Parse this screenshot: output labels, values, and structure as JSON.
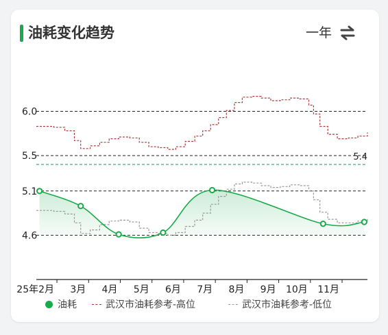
{
  "header": {
    "title": "油耗变化趋势",
    "period": "一年",
    "switch_icon": "swap-arrows-icon"
  },
  "colors": {
    "fuel": "#1aaa4b",
    "high": "#b33a3a",
    "low": "#9a9a9a",
    "reference": "#3a9a6a"
  },
  "chart_data": {
    "type": "line",
    "x_labels": [
      "25年2月",
      "3月",
      "4月",
      "5月",
      "6月",
      "7月",
      "8月",
      "9月",
      "10月",
      "11月"
    ],
    "x_label_months": [
      2,
      3,
      4,
      5,
      6,
      7,
      8,
      9,
      10,
      11
    ],
    "x_range_months": [
      1.35,
      11.8
    ],
    "y_ticks": [
      4.6,
      5.1,
      5.5,
      6.0
    ],
    "ylim": [
      4.1,
      6.6
    ],
    "grid": "dashed horizontal at tick values",
    "reference_line": {
      "value": 5.4,
      "label": "5.4"
    },
    "series": [
      {
        "name": "油耗",
        "style": "smooth-area",
        "points": [
          {
            "month": 1.45,
            "value": 5.1
          },
          {
            "month": 2.75,
            "value": 4.93
          },
          {
            "month": 3.95,
            "value": 4.61
          },
          {
            "month": 5.35,
            "value": 4.63
          },
          {
            "month": 6.9,
            "value": 5.11
          },
          {
            "month": 10.4,
            "value": 4.73
          },
          {
            "month": 11.7,
            "value": 4.75
          }
        ]
      },
      {
        "name": "武汉市油耗参考-高位",
        "style": "dashed-step",
        "points": [
          {
            "month": 1.35,
            "value": 5.83
          },
          {
            "month": 1.9,
            "value": 5.82
          },
          {
            "month": 2.25,
            "value": 5.78
          },
          {
            "month": 2.55,
            "value": 5.67
          },
          {
            "month": 2.75,
            "value": 5.58
          },
          {
            "month": 3.05,
            "value": 5.61
          },
          {
            "month": 3.35,
            "value": 5.65
          },
          {
            "month": 3.65,
            "value": 5.69
          },
          {
            "month": 3.95,
            "value": 5.71
          },
          {
            "month": 4.3,
            "value": 5.7
          },
          {
            "month": 4.6,
            "value": 5.65
          },
          {
            "month": 4.9,
            "value": 5.6
          },
          {
            "month": 5.2,
            "value": 5.59
          },
          {
            "month": 5.5,
            "value": 5.57
          },
          {
            "month": 5.75,
            "value": 5.6
          },
          {
            "month": 6.05,
            "value": 5.66
          },
          {
            "month": 6.35,
            "value": 5.72
          },
          {
            "month": 6.6,
            "value": 5.78
          },
          {
            "month": 6.85,
            "value": 5.85
          },
          {
            "month": 7.1,
            "value": 5.93
          },
          {
            "month": 7.35,
            "value": 6.01
          },
          {
            "month": 7.6,
            "value": 6.1
          },
          {
            "month": 7.85,
            "value": 6.16
          },
          {
            "month": 8.15,
            "value": 6.17
          },
          {
            "month": 8.45,
            "value": 6.15
          },
          {
            "month": 8.75,
            "value": 6.12
          },
          {
            "month": 9.05,
            "value": 6.13
          },
          {
            "month": 9.35,
            "value": 6.15
          },
          {
            "month": 9.65,
            "value": 6.14
          },
          {
            "month": 9.95,
            "value": 6.07
          },
          {
            "month": 10.1,
            "value": 5.97
          },
          {
            "month": 10.3,
            "value": 5.83
          },
          {
            "month": 10.55,
            "value": 5.74
          },
          {
            "month": 10.85,
            "value": 5.69
          },
          {
            "month": 11.2,
            "value": 5.7
          },
          {
            "month": 11.5,
            "value": 5.72
          },
          {
            "month": 11.8,
            "value": 5.76
          }
        ]
      },
      {
        "name": "武汉市油耗参考-低位",
        "style": "dashed-step",
        "points": [
          {
            "month": 1.35,
            "value": 4.88
          },
          {
            "month": 1.9,
            "value": 4.87
          },
          {
            "month": 2.25,
            "value": 4.84
          },
          {
            "month": 2.55,
            "value": 4.74
          },
          {
            "month": 2.75,
            "value": 4.62
          },
          {
            "month": 3.05,
            "value": 4.66
          },
          {
            "month": 3.35,
            "value": 4.72
          },
          {
            "month": 3.65,
            "value": 4.76
          },
          {
            "month": 3.95,
            "value": 4.77
          },
          {
            "month": 4.3,
            "value": 4.75
          },
          {
            "month": 4.6,
            "value": 4.68
          },
          {
            "month": 4.9,
            "value": 4.63
          },
          {
            "month": 5.2,
            "value": 4.62
          },
          {
            "month": 5.5,
            "value": 4.6
          },
          {
            "month": 5.75,
            "value": 4.63
          },
          {
            "month": 6.05,
            "value": 4.7
          },
          {
            "month": 6.35,
            "value": 4.77
          },
          {
            "month": 6.6,
            "value": 4.85
          },
          {
            "month": 6.85,
            "value": 4.95
          },
          {
            "month": 7.1,
            "value": 5.04
          },
          {
            "month": 7.35,
            "value": 5.12
          },
          {
            "month": 7.6,
            "value": 5.18
          },
          {
            "month": 7.85,
            "value": 5.2
          },
          {
            "month": 8.15,
            "value": 5.19
          },
          {
            "month": 8.45,
            "value": 5.16
          },
          {
            "month": 8.75,
            "value": 5.14
          },
          {
            "month": 9.05,
            "value": 5.15
          },
          {
            "month": 9.35,
            "value": 5.17
          },
          {
            "month": 9.65,
            "value": 5.16
          },
          {
            "month": 9.95,
            "value": 5.1
          },
          {
            "month": 10.1,
            "value": 5.0
          },
          {
            "month": 10.3,
            "value": 4.86
          },
          {
            "month": 10.55,
            "value": 4.78
          },
          {
            "month": 10.85,
            "value": 4.74
          },
          {
            "month": 11.2,
            "value": 4.74
          },
          {
            "month": 11.5,
            "value": 4.76
          },
          {
            "month": 11.8,
            "value": 4.8
          }
        ]
      }
    ]
  },
  "legend": [
    {
      "label": "油耗",
      "icon": "solid-dot"
    },
    {
      "label": "武汉市油耗参考-高位",
      "icon": "dashed-line"
    },
    {
      "label": "武汉市油耗参考-低位",
      "icon": "dashed-line"
    }
  ]
}
